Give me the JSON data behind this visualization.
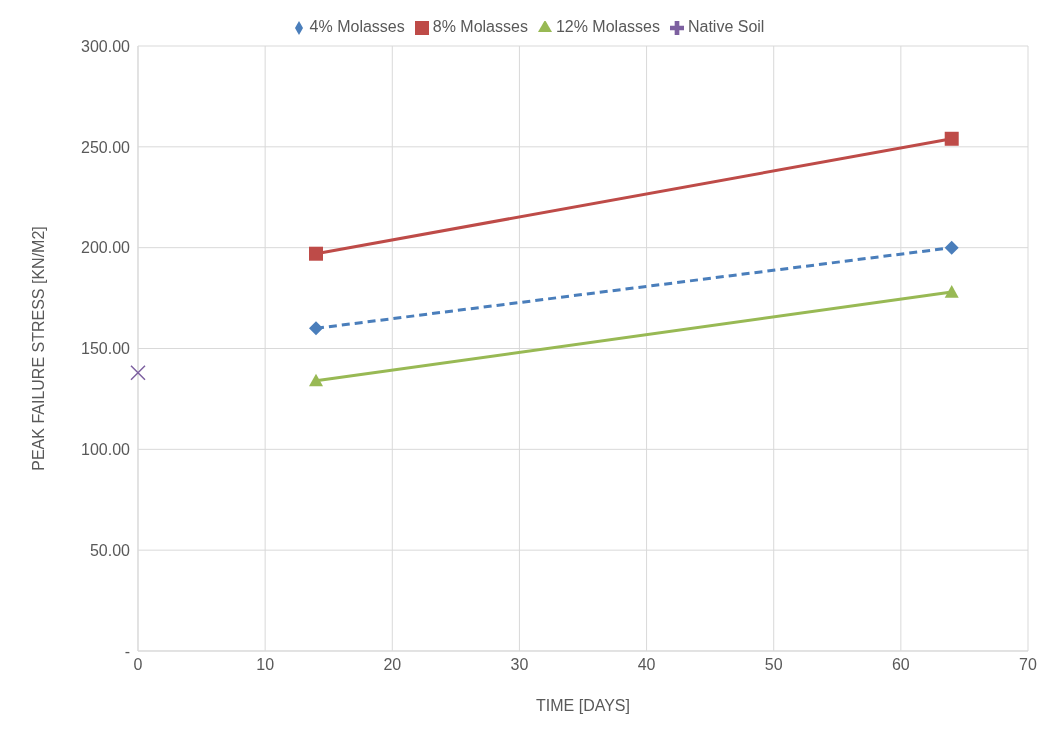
{
  "chart_data": {
    "type": "line",
    "xlabel": "TIME [DAYS]",
    "ylabel": "PEAK FAILURE STRESS [KN/M2]",
    "xlim": [
      0,
      70
    ],
    "xticks": [
      0,
      10,
      20,
      30,
      40,
      50,
      60,
      70
    ],
    "ylim": [
      0,
      300
    ],
    "yticks": [
      {
        "value": 0,
        "label": "-"
      },
      {
        "value": 50,
        "label": "50.00"
      },
      {
        "value": 100,
        "label": "100.00"
      },
      {
        "value": 150,
        "label": "150.00"
      },
      {
        "value": 200,
        "label": "200.00"
      },
      {
        "value": 250,
        "label": "250.00"
      },
      {
        "value": 300,
        "label": "300.00"
      }
    ],
    "grid": true,
    "legend": "top",
    "series": [
      {
        "name": "4% Molasses",
        "color": "#4a7ebb",
        "x": [
          14,
          64
        ],
        "values": [
          160,
          200
        ],
        "marker": "diamond",
        "line_style": "dashed"
      },
      {
        "name": "8% Molasses",
        "color": "#be4b48",
        "x": [
          14,
          64
        ],
        "values": [
          197,
          254
        ],
        "marker": "square",
        "line_style": "solid"
      },
      {
        "name": "12% Molasses",
        "color": "#98b954",
        "x": [
          14,
          64
        ],
        "values": [
          134,
          178
        ],
        "marker": "triangle",
        "line_style": "solid"
      },
      {
        "name": "Native Soil",
        "color": "#7d60a0",
        "x": [
          0
        ],
        "values": [
          138
        ],
        "marker": "cross",
        "line_style": "solid"
      }
    ]
  }
}
